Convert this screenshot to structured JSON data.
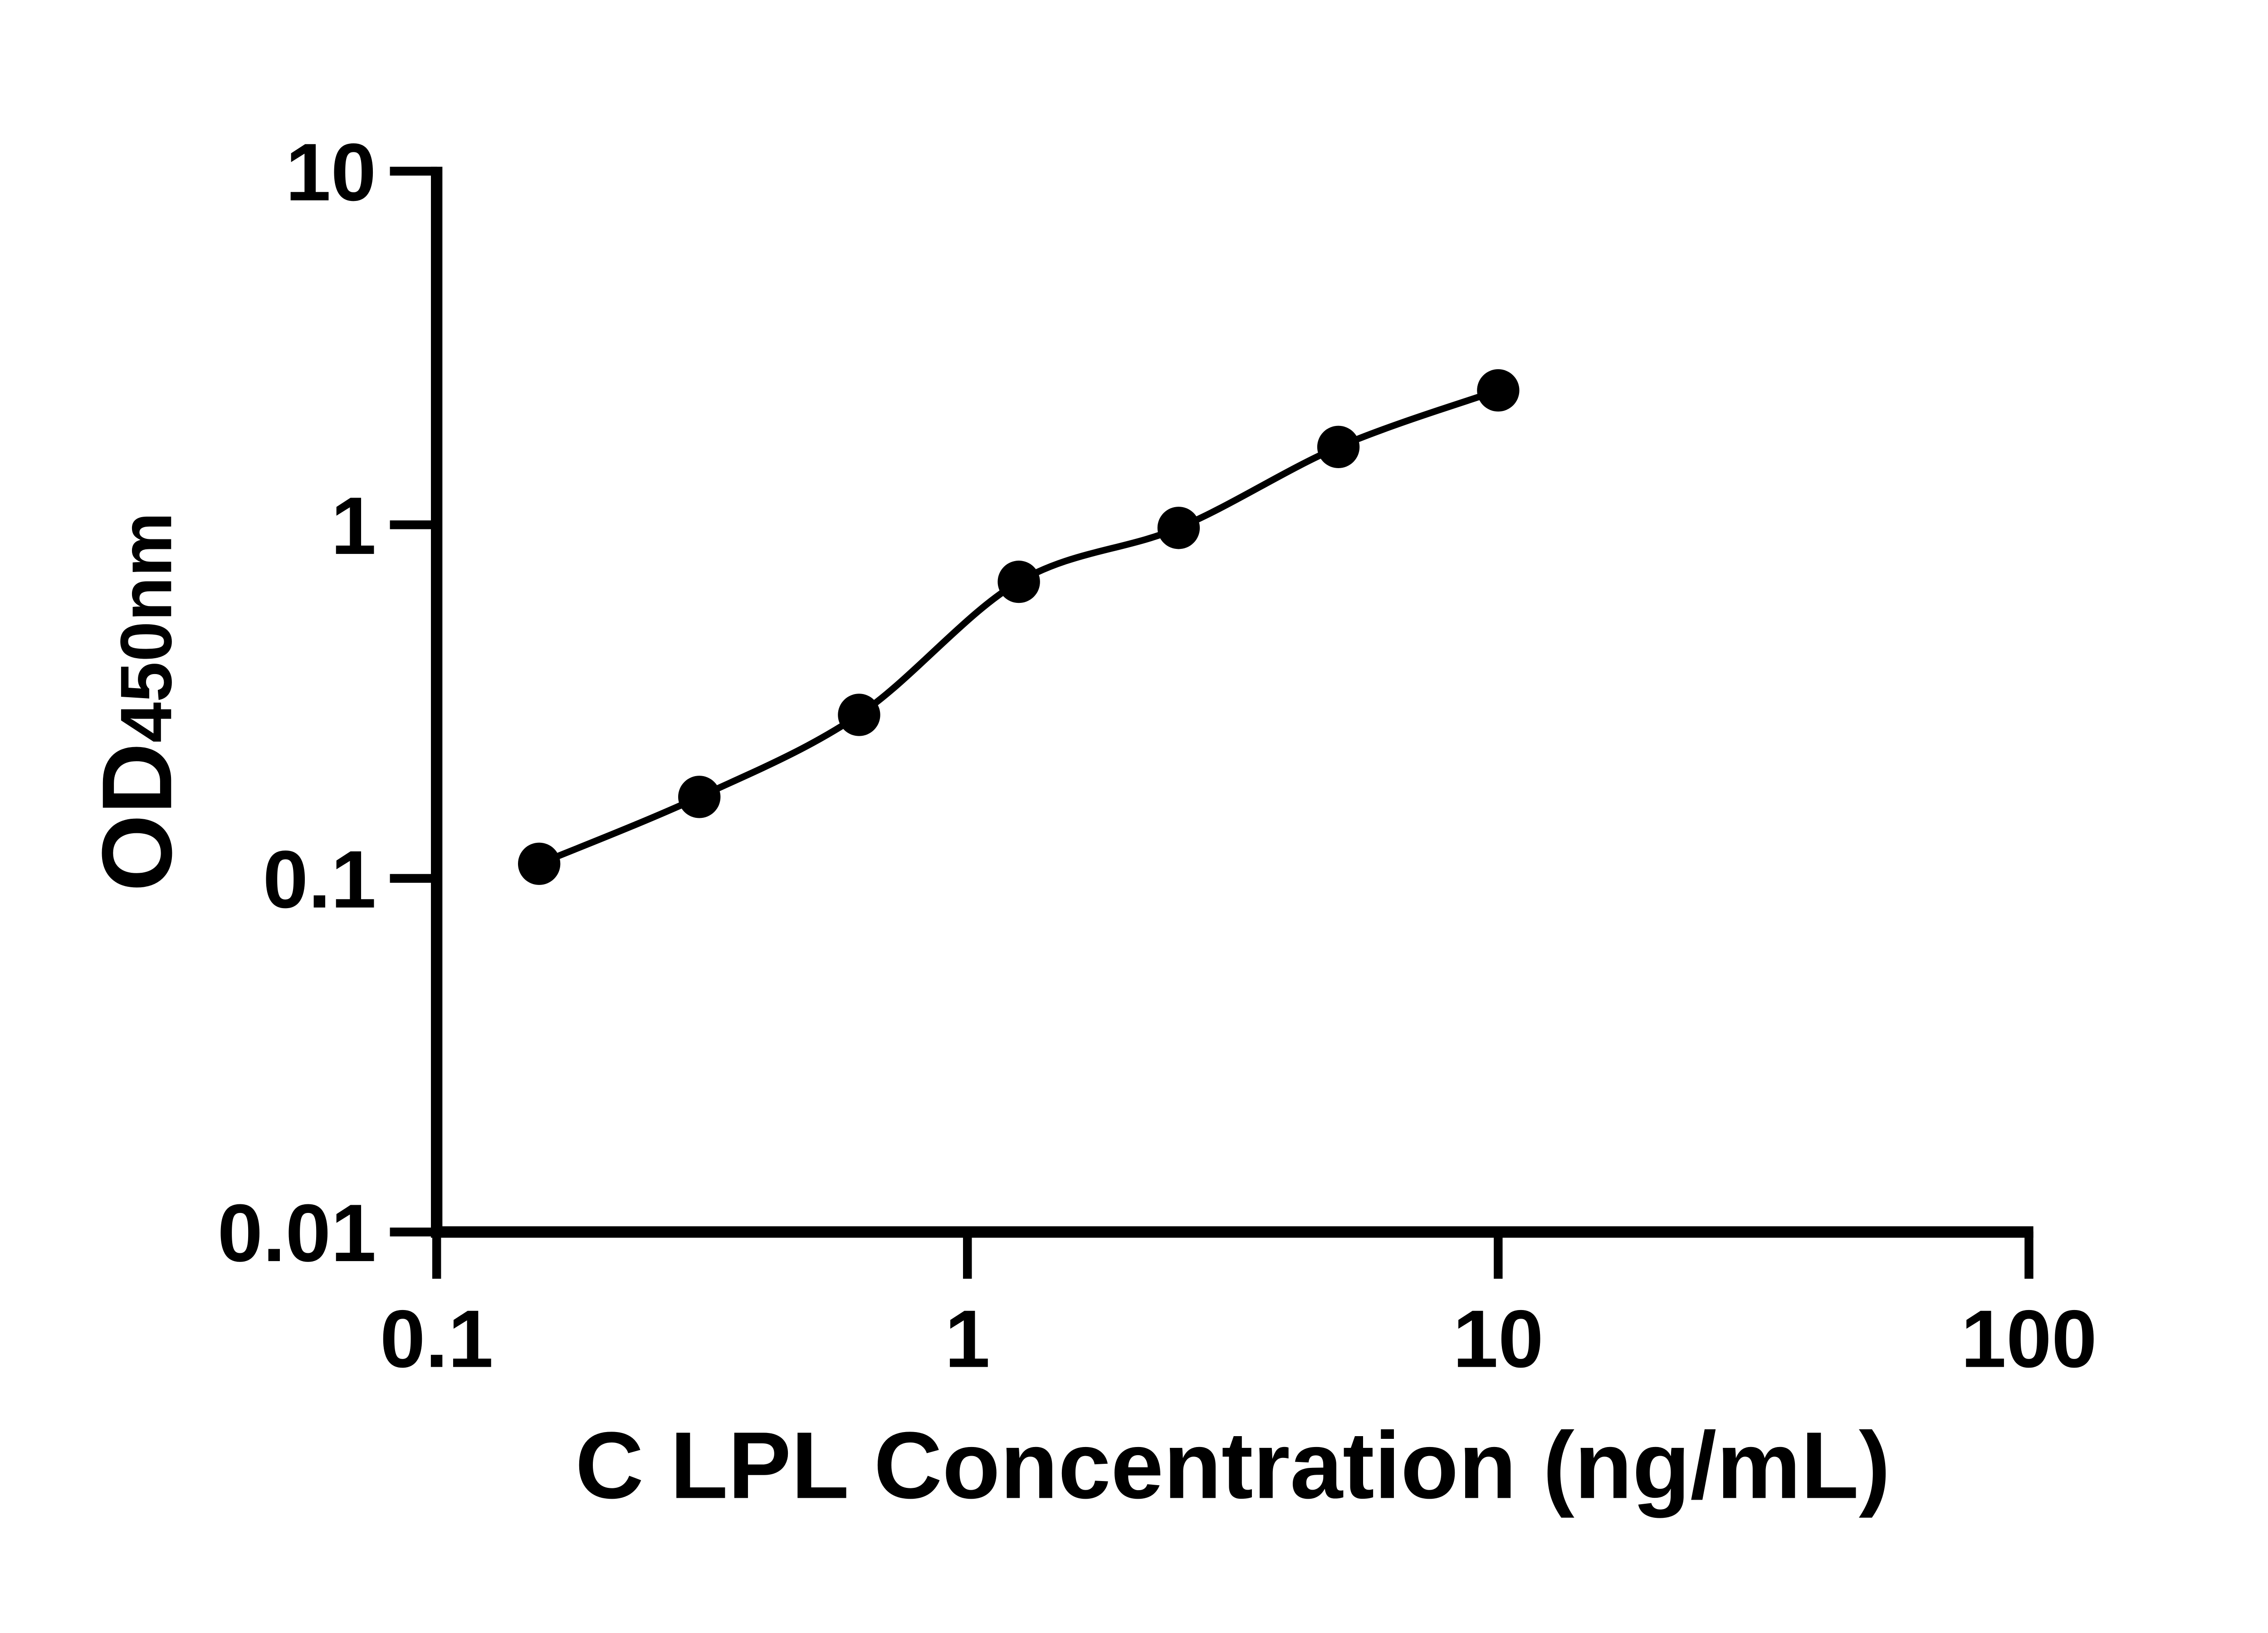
{
  "figure": {
    "background_color": "#ffffff",
    "ink_color": "#000000"
  },
  "chart_data": {
    "type": "line",
    "subtype": "elisa-standard-curve",
    "title": "",
    "xlabel": "C LPL Concentration (ng/mL)",
    "ylabel": "OD450nm",
    "ylabel_base": "OD",
    "ylabel_subscript": "450nm",
    "x_scale": "log10",
    "y_scale": "log10",
    "xlim": [
      0.1,
      100
    ],
    "ylim": [
      0.01,
      10
    ],
    "x_ticks": {
      "values": [
        0.1,
        1,
        10,
        100
      ],
      "labels": [
        "0.1",
        "1",
        "10",
        "100"
      ]
    },
    "y_ticks": {
      "values": [
        10,
        1,
        0.1,
        0.01
      ],
      "labels": [
        "10",
        "1",
        "0.1",
        "0.01"
      ]
    },
    "grid": false,
    "legend": "none",
    "marker_style": "filled-circle",
    "marker_color": "#000000",
    "line_style": "smooth",
    "line_color": "#000000",
    "x": [
      0.156,
      0.3125,
      0.625,
      1.25,
      2.5,
      5,
      10
    ],
    "y": [
      0.11,
      0.17,
      0.29,
      0.69,
      0.98,
      1.66,
      2.4
    ]
  }
}
